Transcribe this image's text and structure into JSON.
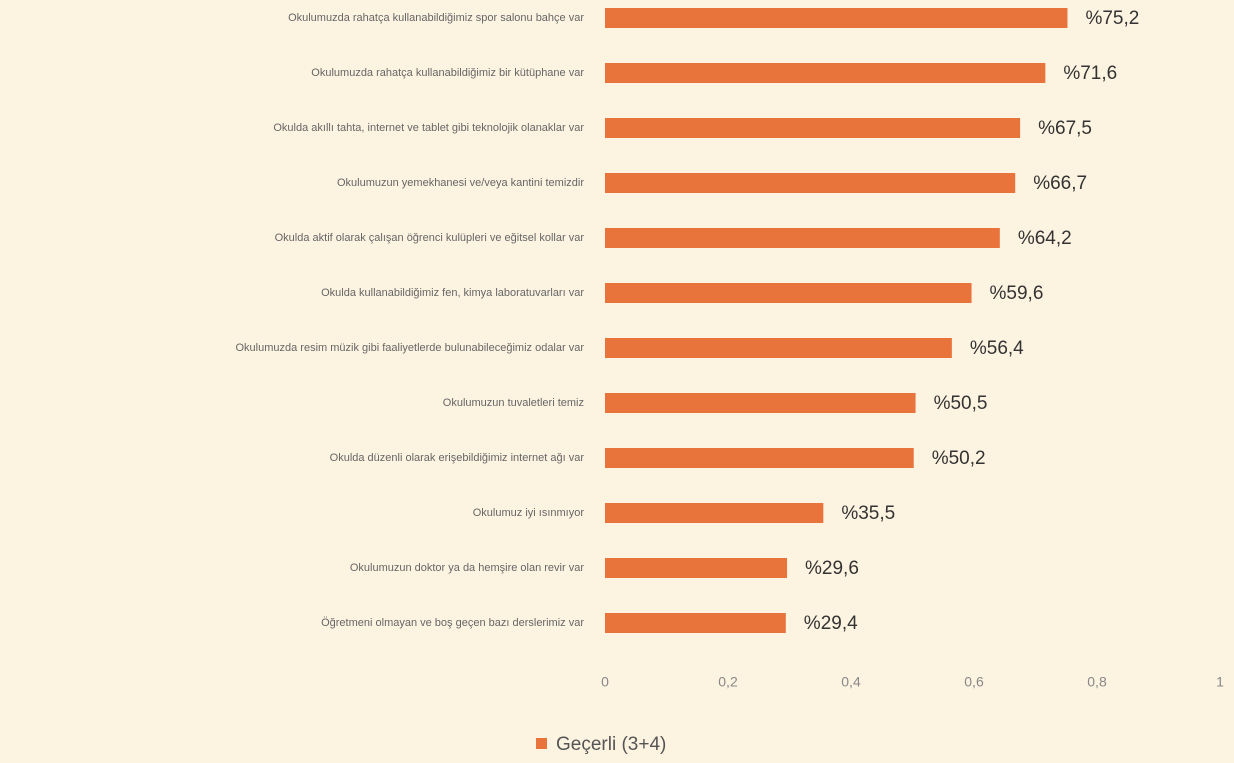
{
  "chart_data": {
    "type": "hbar",
    "categories": [
      "Okulumuzda rahatça kullanabildiğimiz spor salonu bahçe var",
      "Okulumuzda rahatça kullanabildiğimiz bir kütüphane var",
      "Okulda akıllı tahta, internet ve tablet gibi teknolojik olanaklar var",
      "Okulumuzun yemekhanesi ve/veya kantini temizdir",
      "Okulda aktif olarak çalışan öğrenci kulüpleri ve eğitsel kollar var",
      "Okulda kullanabildiğimiz fen, kimya laboratuvarları var",
      "Okulumuzda resim müzik gibi faaliyetlerde bulunabileceğimiz odalar var",
      "Okulumuzun tuvaletleri temiz",
      "Okulda düzenli olarak erişebildiğimiz internet ağı var",
      "Okulumuz iyi ısınmıyor",
      "Okulumuzun doktor ya da hemşire olan revir var",
      "Öğretmeni olmayan ve boş geçen bazı derslerimiz var"
    ],
    "series": [
      {
        "name": "Geçerli (3+4)",
        "color": "#e8743b",
        "values": [
          0.752,
          0.716,
          0.675,
          0.667,
          0.642,
          0.596,
          0.564,
          0.505,
          0.502,
          0.355,
          0.296,
          0.294
        ],
        "value_labels": [
          "%75,2",
          "%71,6",
          "%67,5",
          "%66,7",
          "%64,2",
          "%59,6",
          "%56,4",
          "%50,5",
          "%50,2",
          "%35,5",
          "%29,6",
          "%29,4"
        ]
      }
    ],
    "xlim": [
      0,
      1
    ],
    "xticks": [
      0,
      {
        "value": 0.2,
        "label": "0,2"
      },
      {
        "value": 0.4,
        "label": "0,4"
      },
      {
        "value": 0.6,
        "label": "0,6"
      },
      {
        "value": 0.8,
        "label": "0,8"
      },
      1
    ],
    "legend": "bottom"
  }
}
